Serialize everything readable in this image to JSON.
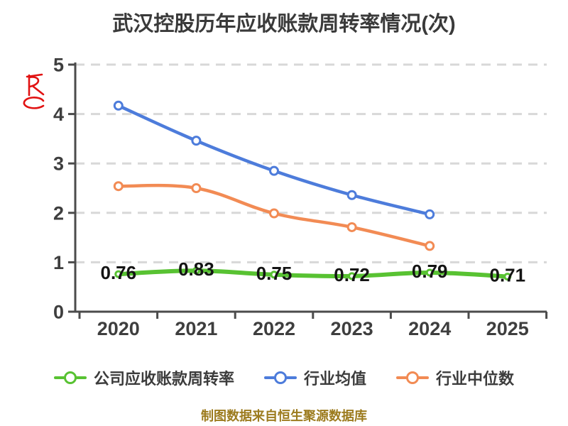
{
  "title": "武汉控股历年应收账款周转率情况(次)",
  "footer": "制图数据来自恒生聚源数据库",
  "watermark": {
    "glyph": "R",
    "color": "#E11212"
  },
  "colors": {
    "company_green": "#58C232",
    "industry_avg_blue": "#4D7CDB",
    "industry_median_orange": "#F28B54",
    "axis": "#4B4B4B",
    "grid": "#D8D8D8",
    "tick_text": "#3E3E3E",
    "title_text": "#3A3A3A",
    "footer_gold": "#9C7B1E",
    "value_label": "#141414"
  },
  "chart_data": {
    "type": "line",
    "title": "武汉控股历年应收账款周转率情况(次)",
    "categories": [
      "2020",
      "2021",
      "2022",
      "2023",
      "2024",
      "2025"
    ],
    "series": [
      {
        "name": "公司应收账款周转率",
        "color": "#58C232",
        "values": [
          0.76,
          0.83,
          0.75,
          0.72,
          0.79,
          0.71
        ],
        "labels": [
          "0.76",
          "0.83",
          "0.75",
          "0.72",
          "0.79",
          "0.71"
        ],
        "show_labels": true,
        "line_width": 6,
        "marker_r": 4
      },
      {
        "name": "行业均值",
        "color": "#4D7CDB",
        "values": [
          4.17,
          3.46,
          2.85,
          2.36,
          1.97,
          null
        ],
        "show_labels": false,
        "line_width": 4.5,
        "marker_r": 5.5
      },
      {
        "name": "行业中位数",
        "color": "#F28B54",
        "values": [
          2.54,
          2.5,
          1.99,
          1.71,
          1.33,
          null
        ],
        "show_labels": false,
        "line_width": 4.5,
        "marker_r": 5.5
      }
    ],
    "xlabel": "",
    "ylabel": "",
    "ylim": [
      0,
      5
    ],
    "yticks": [
      0,
      1,
      2,
      3,
      4,
      5
    ],
    "grid": "horizontal-dashed",
    "legend_position": "bottom"
  }
}
